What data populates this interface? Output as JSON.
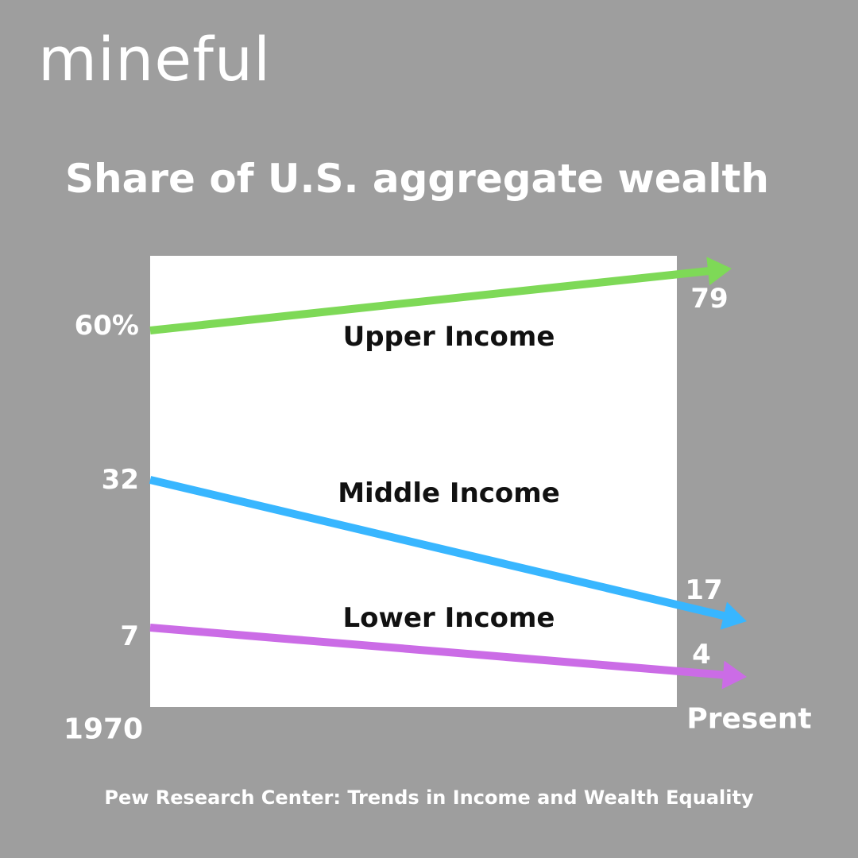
{
  "brand": {
    "logo_text": "mineful"
  },
  "chart_data": {
    "type": "line",
    "title": "Share of U.S. aggregate wealth",
    "x": [
      "1970",
      "Present"
    ],
    "series": [
      {
        "name": "Upper Income",
        "values": [
          60,
          79
        ],
        "start_label": "60%",
        "end_label": "79",
        "color": "#7ed957"
      },
      {
        "name": "Middle Income",
        "values": [
          32,
          17
        ],
        "start_label": "32",
        "end_label": "17",
        "color": "#38b6ff"
      },
      {
        "name": "Lower Income",
        "values": [
          7,
          4
        ],
        "start_label": "7",
        "end_label": "4",
        "color": "#cb6ce6"
      }
    ],
    "grid": false,
    "legend": "inline"
  },
  "source": "Pew Research Center: Trends in Income and Wealth Equality"
}
